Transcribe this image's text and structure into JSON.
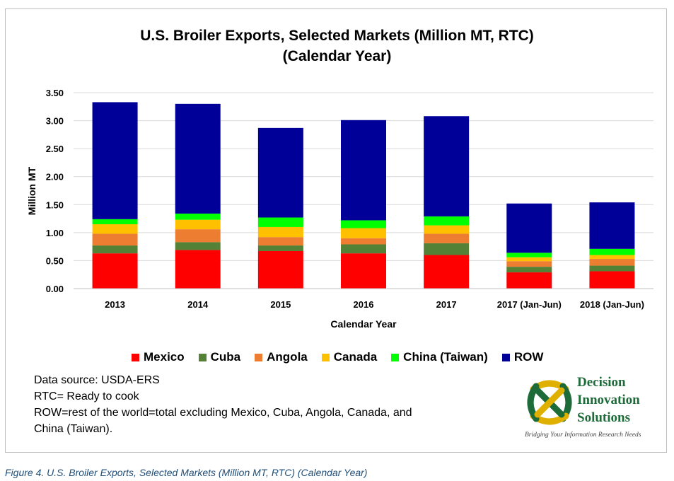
{
  "caption": "Figure 4. U.S. Broiler Exports, Selected Markets (Million MT, RTC) (Calendar Year)",
  "chart_data": {
    "type": "bar",
    "stacked": true,
    "title": [
      "U.S. Broiler Exports, Selected Markets (Million MT, RTC)",
      "(Calendar Year)"
    ],
    "xlabel": "Calendar Year",
    "ylabel": "Million MT",
    "ylim": [
      0,
      3.5
    ],
    "yticks": [
      "0.00",
      "0.50",
      "1.00",
      "1.50",
      "2.00",
      "2.50",
      "3.00",
      "3.50"
    ],
    "grid": true,
    "legend_position": "bottom",
    "categories": [
      "2013",
      "2014",
      "2015",
      "2016",
      "2017",
      "2017 (Jan-Jun)",
      "2018 (Jan-Jun)"
    ],
    "series": [
      {
        "name": "Mexico",
        "color": "#ff0000",
        "values": [
          0.63,
          0.69,
          0.67,
          0.63,
          0.6,
          0.29,
          0.31
        ]
      },
      {
        "name": "Cuba",
        "color": "#538135",
        "values": [
          0.14,
          0.14,
          0.1,
          0.16,
          0.21,
          0.1,
          0.1
        ]
      },
      {
        "name": "Angola",
        "color": "#ed7d31",
        "values": [
          0.21,
          0.23,
          0.15,
          0.11,
          0.17,
          0.1,
          0.12
        ]
      },
      {
        "name": "Canada",
        "color": "#ffc000",
        "values": [
          0.17,
          0.17,
          0.18,
          0.18,
          0.15,
          0.07,
          0.07
        ]
      },
      {
        "name": "China (Taiwan)",
        "color": "#00ff00",
        "values": [
          0.09,
          0.11,
          0.17,
          0.14,
          0.16,
          0.08,
          0.11
        ]
      },
      {
        "name": "ROW",
        "color": "#000099",
        "values": [
          2.09,
          1.96,
          1.6,
          1.79,
          1.79,
          0.88,
          0.83
        ]
      }
    ]
  },
  "notes": [
    "Data source: USDA-ERS",
    "RTC= Ready to  cook",
    "ROW=rest of the world=total excluding Mexico, Cuba, Angola, Canada, and",
    "China (Taiwan)."
  ],
  "logo": {
    "lines": [
      "Decision",
      "Innovation",
      "Solutions"
    ],
    "tagline": "Bridging Your Information Research Needs",
    "colors": {
      "green": "#1e6b3a",
      "gold": "#e0b000"
    }
  }
}
